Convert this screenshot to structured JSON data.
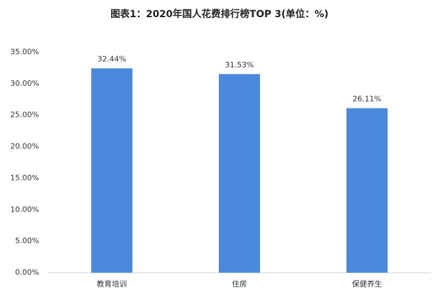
{
  "chart_data": {
    "type": "bar",
    "title": "图表1：2020年国人花费排行榜TOP 3(单位：%)",
    "categories": [
      "教育培训",
      "住房",
      "保健养生"
    ],
    "values": [
      32.44,
      31.53,
      26.11
    ],
    "value_labels": [
      "32.44%",
      "31.53%",
      "26.11%"
    ],
    "color": "#4a89dc",
    "ylim": [
      0,
      35
    ],
    "yticks": [
      {
        "value": 0,
        "label": "0.00%"
      },
      {
        "value": 5,
        "label": "5.00%"
      },
      {
        "value": 10,
        "label": "10.00%"
      },
      {
        "value": 15,
        "label": "15.00%"
      },
      {
        "value": 20,
        "label": "20.00%"
      },
      {
        "value": 25,
        "label": "25.00%"
      },
      {
        "value": 30,
        "label": "30.00%"
      },
      {
        "value": 35,
        "label": "35.00%"
      }
    ],
    "grid": false
  }
}
